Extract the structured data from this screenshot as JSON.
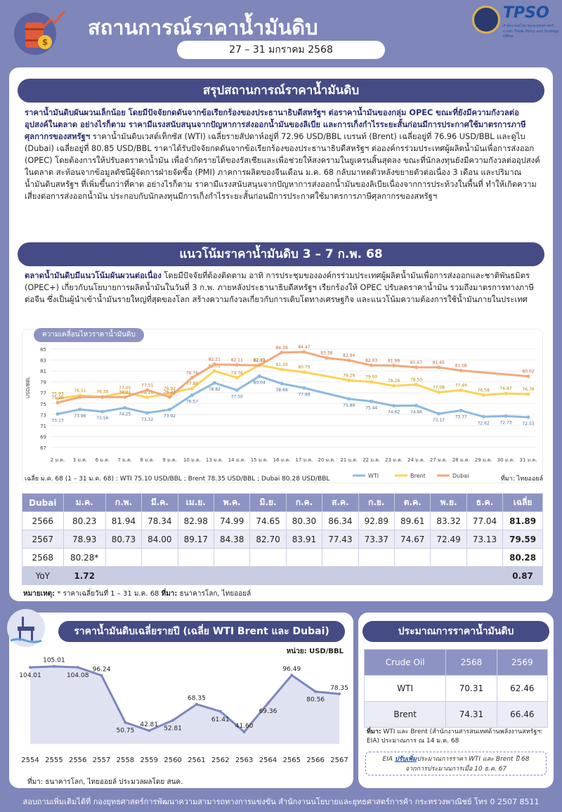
{
  "header": {
    "title": "สถานการณ์ราคาน้ำมันดิบ",
    "date": "27 – 31 มกราคม 2568",
    "logo": "TPSO",
    "logo_sub": "สำนักงานนโยบายและยุทธศาสตร์การค้า Trade Policy and Strategy Office"
  },
  "summary": {
    "heading": "สรุปสถานการณ์ราคาน้ำมันดิบ",
    "bold": "ราคาน้ำมันดิบผันผวนเล็กน้อย โดยมีปัจจัยกดดันจากข้อเรียกร้องของประธานาธิบดีสหรัฐฯ ต่อราคาน้ำมันของกลุ่ม OPEC ขณะที่ยังมีความกังวลต่ออุปสงค์ในตลาด อย่างไรก็ตาม ราคามีแรงสนับสนุนจากปัญหาการส่งออกน้ำมันของลิเบีย และการเก็งกำไรระยะสั้นก่อนมีการประกาศใช้มาตรการภาษีศุลกากรของสหรัฐฯ",
    "text": " ราคาน้ำมันดิบเวสต์เท็กซัส (WTI) เฉลี่ยรายสัปดาห์อยู่ที่ 72.96 USD/BBL เบรนท์ (Brent) เฉลี่ยอยู่ที่ 76.96 USD/BBL และดูไบ (Dubai) เฉลี่ยอยู่ที่ 80.85 USD/BBL ราคาได้รับปัจจัยกดดันจากข้อเรียกร้องของประธานาธิบดีสหรัฐฯ ต่อองค์กรร่วมประเทศผู้ผลิตน้ำมันเพื่อการส่งออก (OPEC) โดยต้องการให้ปรับลดราคาน้ำมัน เพื่อจำกัดรายได้ของรัสเซียและเพื่อช่วยให้สงครามในยูเครนสิ้นสุดลง ขณะที่นักลงทุนยังมีความกังวลต่ออุปสงค์ในตลาด สะท้อนจากข้อมูลดัชนีผู้จัดการฝ่ายจัดซื้อ (PMI) ภาคการผลิตของจีนเดือน ม.ค. 68 กลับมาหดตัวหลังขยายตัวต่อเนื่อง 3 เดือน และปริมาณน้ำมันดิบสหรัฐฯ ที่เพิ่มขึ้นกว่าที่คาด อย่างไรก็ตาม ราคามีแรงสนับสนุนจากปัญหาการส่งออกน้ำมันของลิเบียเนื่องจากการประท้วงในพื้นที่ ทำให้เกิดความเสี่ยงต่อการส่งออกน้ำมัน ประกอบกับนักลงทุนมีการเก็งกำไรระยะสั้นก่อนมีการประกาศใช้มาตรการภาษีศุลกากรของสหรัฐฯ"
  },
  "trend": {
    "heading": "แนวโน้มราคาน้ำมันดิบ 3 – 7 ก.พ. 68",
    "bold": "ตลาดน้ำมันดิบมีแนวโน้มผันผวนต่อเนื่อง",
    "text": " โดยมีปัจจัยที่ต้องติดตาม อาทิ การประชุมขององค์กรร่วมประเทศผู้ผลิตน้ำมันเพื่อการส่งออกและชาติพันธมิตร (OPEC+) เกี่ยวกับนโยบายการผลิตน้ำมันในวันที่ 3 ก.พ. ภายหลังประธานาธิบดีสหรัฐฯ เรียกร้องให้ OPEC ปรับลดราคาน้ำมัน รวมถึงมาตรการทางภาษีต่อจีน ซึ่งเป็นผู้นำเข้าน้ำมันรายใหญ่ที่สุดของโลก สร้างความกังวลเกี่ยวกับการเติบโตทางเศรษฐกิจ และแนวโน้มความต้องการใช้น้ำมันภายในประเทศ"
  },
  "chart_data": [
    {
      "type": "line",
      "title": "ความเคลื่อนไหวราคาน้ำมันดิบ",
      "categories": [
        "2 ม.ค.",
        "3 ม.ค.",
        "6 ม.ค.",
        "7 ม.ค.",
        "8 ม.ค.",
        "9 ม.ค.",
        "10 ม.ค.",
        "13 ม.ค.",
        "14 ม.ค.",
        "15 ม.ค.",
        "16 ม.ค.",
        "17 ม.ค.",
        "20 ม.ค.",
        "21 ม.ค.",
        "22 ม.ค.",
        "23 ม.ค.",
        "24 ม.ค.",
        "27 ม.ค.",
        "28 ม.ค.",
        "29 ม.ค.",
        "30 ม.ค.",
        "31 ม.ค."
      ],
      "yticks": [
        67,
        69,
        71,
        73,
        75,
        77,
        79,
        81,
        83,
        85
      ],
      "ylabel": "USD/BBL",
      "ylim": [
        67,
        85
      ],
      "series": [
        {
          "name": "WTI",
          "color": "#8db9df",
          "values": [
            73.13,
            73.96,
            73.56,
            74.25,
            73.32,
            73.92,
            76.57,
            78.82,
            77.5,
            80.04,
            78.68,
            77.88,
            null,
            75.89,
            75.44,
            74.62,
            74.66,
            73.17,
            73.77,
            72.62,
            72.73,
            72.53
          ],
          "labels": [
            "73.13",
            "73.96",
            "73.56",
            "74.25",
            "73.32",
            "73.92",
            "76.57",
            "78.82",
            "77.50",
            "80.04",
            "78.68",
            "77.88",
            "",
            "75.89",
            "75.44",
            "74.62",
            "74.66",
            "73.17",
            "73.77",
            "72.62",
            "72.73",
            "72.53"
          ]
        },
        {
          "name": "Brent",
          "color": "#fbd35a",
          "values": [
            75.93,
            76.51,
            76.3,
            77.05,
            76.16,
            76.92,
            77.8,
            81.01,
            79.76,
            82.11,
            81.29,
            80.79,
            null,
            79.29,
            79.0,
            78.29,
            78.5,
            77.08,
            77.49,
            76.58,
            76.87,
            76.76
          ],
          "labels": [
            "75.93",
            "76.51",
            "76.30",
            "77.05",
            "76.16",
            "76.92",
            "77.80",
            "81.01",
            "79.76",
            "82.11",
            "81.29",
            "80.79",
            "",
            "79.29",
            "79.00",
            "78.29",
            "78.50",
            "77.08",
            "77.49",
            "76.58",
            "76.87",
            "76.76"
          ]
        },
        {
          "name": "Dubai",
          "color": "#f2a97a",
          "values": [
            75.2,
            76.21,
            76.21,
            76.21,
            77.51,
            76.23,
            79.76,
            82.21,
            82.11,
            82.03,
            84.38,
            84.47,
            83.38,
            82.94,
            82.03,
            81.99,
            81.67,
            81.65,
            81.08,
            null,
            null,
            80.02
          ],
          "labels": [
            "75.20",
            "",
            "",
            "76.21",
            "77.51",
            "76.23",
            "79.76",
            "82.21",
            "82.11",
            "82.03",
            "84.38",
            "84.47",
            "83.38",
            "82.94",
            "82.03",
            "81.99",
            "81.67",
            "81.65",
            "81.08",
            "",
            "",
            "80.02"
          ]
        }
      ],
      "avg_note": "เฉลี่ย ม.ค. 68 (1 – 31 ม.ค. 68) : WTI 75.10 USD/BBL ; Brent 78.35 USD/BBL ; Dubai 80.28 USD/BBL",
      "source": "ที่มา: ไทยออยล์"
    },
    {
      "type": "line",
      "title": "ราคาน้ำมันดิบเฉลี่ยรายปี (เฉลี่ย WTI Brent และ Dubai)",
      "unit": "หน่วย: USD/BBL",
      "categories": [
        "2554",
        "2555",
        "2556",
        "2557",
        "2558",
        "2559",
        "2560",
        "2561",
        "2562",
        "2563",
        "2564",
        "2565",
        "2566",
        "2567"
      ],
      "values": [
        104.01,
        105.01,
        104.08,
        96.24,
        50.75,
        42.81,
        52.81,
        68.35,
        61.41,
        41.6,
        69.36,
        96.49,
        80.56,
        78.35
      ],
      "labels": [
        "104.01",
        "105.01",
        "104.08",
        "96.24",
        "50.75",
        "42.81",
        "52.81",
        "68.35",
        "61.41",
        "41.60",
        "69.36",
        "96.49",
        "80.56",
        "78.35"
      ],
      "ylim": [
        30,
        115
      ],
      "source": "ที่มา: ธนาคารโลก, ไทยออยล์ ประมวลผลโดย สนค."
    }
  ],
  "dubai_table": {
    "headers": [
      "Dubai",
      "ม.ค.",
      "ก.พ.",
      "มี.ค.",
      "เม.ย.",
      "พ.ค.",
      "มิ.ย.",
      "ก.ค.",
      "ส.ค.",
      "ก.ย.",
      "ต.ค.",
      "พ.ย.",
      "ธ.ค.",
      "เฉลี่ย"
    ],
    "rows": [
      [
        "2566",
        "80.23",
        "81.94",
        "78.34",
        "82.98",
        "74.99",
        "74.65",
        "80.30",
        "86.34",
        "92.89",
        "89.61",
        "83.32",
        "77.04",
        "81.89"
      ],
      [
        "2567",
        "78.93",
        "80.73",
        "84.00",
        "89.17",
        "84.38",
        "82.70",
        "83.91",
        "77.43",
        "73.37",
        "74.67",
        "72.49",
        "73.13",
        "79.59"
      ],
      [
        "2568",
        "80.28*",
        "",
        "",
        "",
        "",
        "",
        "",
        "",
        "",
        "",
        "",
        "",
        "80.28"
      ],
      [
        "YoY",
        "1.72",
        "",
        "",
        "",
        "",
        "",
        "",
        "",
        "",
        "",
        "",
        "",
        "0.87"
      ]
    ],
    "note_label": "หมายเหตุ:",
    "note": " * ราคาเฉลี่ยวันที่ 1 – 31 ม.ค. 68 ",
    "note_src_label": "ที่มา:",
    "note_src": " ธนาคารโลก, ไทยออยล์"
  },
  "forecast": {
    "heading": "ประมาณการราคาน้ำมันดิบ",
    "headers": [
      "Crude Oil",
      "2568",
      "2569"
    ],
    "rows": [
      [
        "WTI",
        "70.31",
        "62.46"
      ],
      [
        "Brent",
        "74.31",
        "66.46"
      ]
    ],
    "note_label": "ที่มา:",
    "note": " WTI และ Brent (สำนักงานสารสนเทศด้านพลังงานสหรัฐฯ: EIA) ประมาณการ ณ 14 ม.ค. 68",
    "eia_pre": "EIA ",
    "eia_hl": "ปรับเพิ่ม",
    "eia_post": "ประมาณการราคา WTI และ Brent ปี 68",
    "eia_line2": "จากการประมาณการเมื่อ 10 ธ.ค. 67"
  },
  "footer": "สอบถามเพิ่มเติมได้ที่ กองยุทธศาสตร์การพัฒนาความสามารถทางการแข่งขัน สำนักงานนโยบายและยุทธศาสตร์การค้า กระทรวงพาณิชย์ โทร 0 2507 8511"
}
